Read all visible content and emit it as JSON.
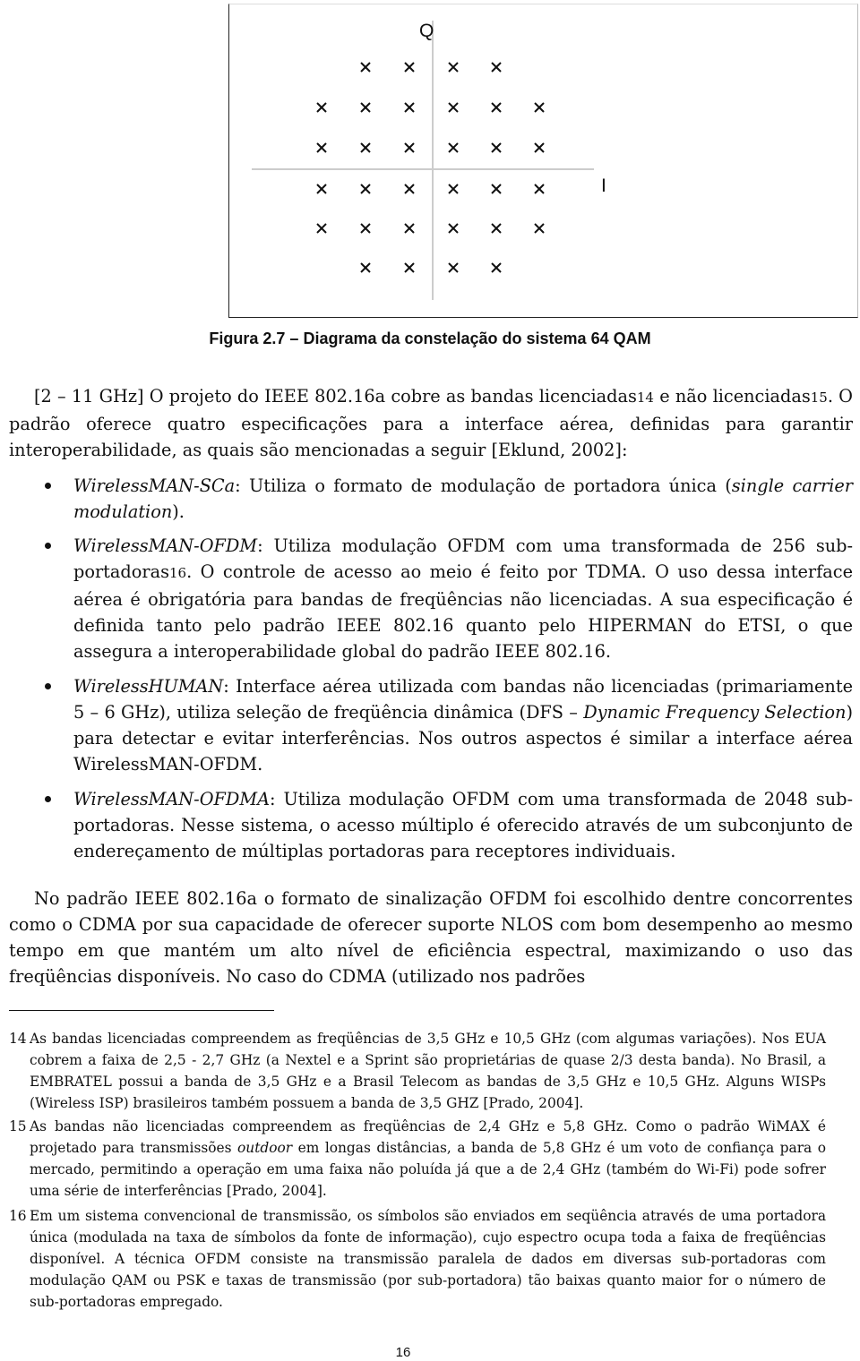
{
  "figure": {
    "q_label": "Q",
    "i_label": "I",
    "caption": "Figura 2.7 – Diagrama da constelação do sistema 64 QAM"
  },
  "paragraph_1": [
    {
      "text": "[2 – 11 GHz] O projeto do IEEE 802.16a cobre as bandas licenciadas"
    },
    {
      "text": "14",
      "style": "ref"
    },
    {
      "text": " e não licenciadas"
    },
    {
      "text": "15",
      "style": "ref"
    },
    {
      "text": ". O padrão oferece quatro especificações para a interface aérea, definidas para garantir interoperabilidade, as quais são mencionadas a seguir [Eklund, 2002]:"
    }
  ],
  "bullets": [
    [
      {
        "text": "WirelessMAN-SCa",
        "style": "italic"
      },
      {
        "text": ": Utiliza o formato de modulação de portadora única ("
      },
      {
        "text": "single carrier modulation",
        "style": "italic"
      },
      {
        "text": ")."
      }
    ],
    [
      {
        "text": "WirelessMAN-OFDM",
        "style": "italic"
      },
      {
        "text": ": Utiliza modulação OFDM com uma transformada de 256 sub-portadoras"
      },
      {
        "text": "16",
        "style": "ref"
      },
      {
        "text": ". O controle de acesso ao meio é feito por TDMA. O uso dessa interface aérea é obrigatória para bandas de freqüências não licenciadas. A sua especificação é definida tanto pelo padrão IEEE 802.16 quanto pelo HIPERMAN do ETSI, o que assegura a interoperabilidade global do padrão IEEE 802.16."
      }
    ],
    [
      {
        "text": "WirelessHUMAN",
        "style": "italic"
      },
      {
        "text": ": Interface aérea utilizada com bandas não licenciadas (primariamente 5 – 6 GHz), utiliza seleção de freqüência dinâmica (DFS – "
      },
      {
        "text": "Dynamic Frequency Selection",
        "style": "italic"
      },
      {
        "text": ") para detectar e evitar interferências. Nos outros aspectos é similar a interface aérea WirelessMAN-OFDM."
      }
    ],
    [
      {
        "text": "WirelessMAN-OFDMA",
        "style": "italic"
      },
      {
        "text": ": Utiliza modulação OFDM com uma transformada de 2048 sub-portadoras. Nesse sistema, o acesso múltiplo é oferecido através de um subconjunto de endereçamento de múltiplas portadoras para receptores individuais."
      }
    ]
  ],
  "paragraph_2": [
    {
      "text": "No padrão IEEE 802.16a o formato de sinalização OFDM foi escolhido dentre concorrentes como o CDMA por sua capacidade de oferecer suporte NLOS com bom desempenho ao mesmo tempo em que mantém um alto nível de eficiência espectral, maximizando o uso das freqüências disponíveis. No caso do CDMA (utilizado nos padrões"
    }
  ],
  "footnotes": [
    {
      "number": "14",
      "runs": [
        {
          "text": "As bandas licenciadas compreendem as freqüências de 3,5 GHz e 10,5 GHz (com algumas variações). Nos EUA cobrem a faixa de 2,5 - 2,7 GHz (a Nextel e a Sprint são proprietárias de quase 2/3 desta banda). No Brasil, a EMBRATEL possui a banda de 3,5 GHz e a Brasil Telecom as bandas de 3,5 GHz e 10,5 GHz. Alguns WISPs (Wireless ISP) brasileiros também possuem a banda de 3,5 GHZ [Prado, 2004]."
        }
      ]
    },
    {
      "number": "15",
      "runs": [
        {
          "text": "As bandas não licenciadas compreendem as freqüências de 2,4 GHz e 5,8 GHz. Como o padrão WiMAX é projetado para transmissões "
        },
        {
          "text": "outdoor",
          "style": "italic"
        },
        {
          "text": " em longas distâncias, a banda de 5,8 GHz é um voto de confiança para o mercado, permitindo a operação em uma faixa não poluída já que a de 2,4 GHz (também do Wi-Fi) pode sofrer uma série de interferências [Prado, 2004]."
        }
      ]
    },
    {
      "number": "16",
      "runs": [
        {
          "text": "Em um sistema convencional de transmissão, os símbolos são enviados em seqüência através de uma portadora única (modulada na taxa de símbolos da fonte de informação), cujo espectro ocupa toda a faixa de freqüências disponível. A técnica OFDM consiste na transmissão paralela de dados em diversas sub-portadoras com modulação QAM ou PSK e taxas de transmissão (por sub-portadora) tão baixas quanto maior for o número de sub-portadoras empregado."
        }
      ]
    }
  ],
  "page_number": "16"
}
